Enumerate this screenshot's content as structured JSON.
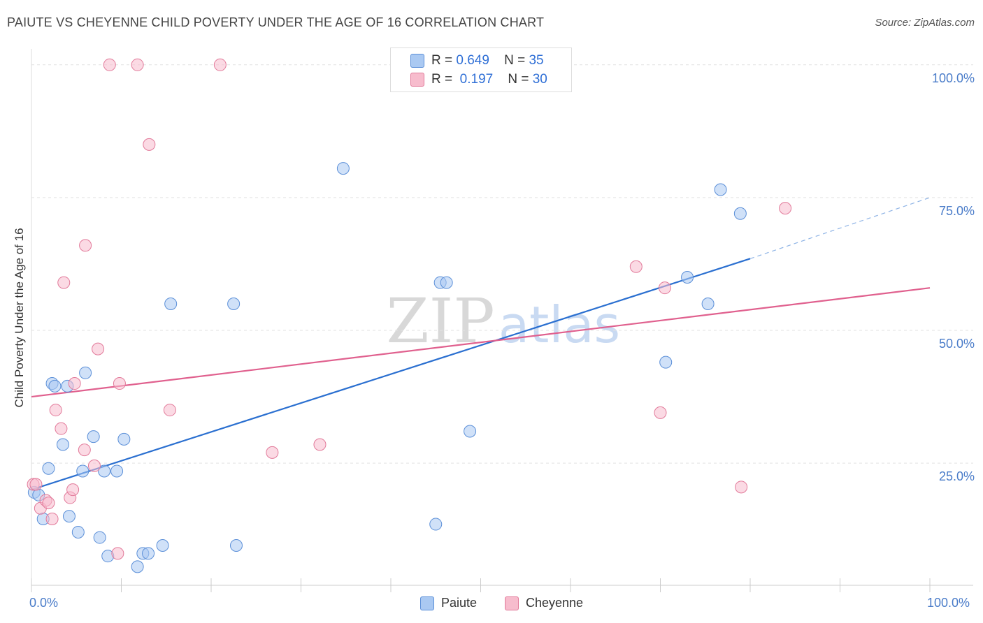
{
  "header": {
    "title": "PAIUTE VS CHEYENNE CHILD POVERTY UNDER THE AGE OF 16 CORRELATION CHART",
    "source": "Source: ZipAtlas.com"
  },
  "watermark": {
    "zip": "ZIP",
    "atlas": "atlas"
  },
  "legend": {
    "paiute": {
      "r_label": "R =",
      "r_value": "0.649",
      "n_label": "N =",
      "n_value": "35",
      "color": "#a8c8f0"
    },
    "cheyenne": {
      "r_label": "R =",
      "r_value": "0.197",
      "n_label": "N =",
      "n_value": "30",
      "color": "#f5b8c8"
    }
  },
  "bottom_legend": {
    "paiute": "Paiute",
    "cheyenne": "Cheyenne"
  },
  "colors": {
    "paiute_fill": "#aac9f2",
    "paiute_stroke": "#5b8fd8",
    "paiute_line": "#2a6fd0",
    "cheyenne_fill": "#f7bccd",
    "cheyenne_stroke": "#e27a9a",
    "cheyenne_line": "#e0608e",
    "axis_label": "#4a7cc9"
  },
  "chart_data": {
    "type": "scatter",
    "title": "PAIUTE VS CHEYENNE CHILD POVERTY UNDER THE AGE OF 16 CORRELATION CHART",
    "xlabel": "",
    "ylabel": "Child Poverty Under the Age of 16",
    "xlim": [
      0,
      100
    ],
    "ylim": [
      2,
      103
    ],
    "x_tick_labels": [
      "0.0%",
      "100.0%"
    ],
    "y_ticks": [
      25,
      50,
      75,
      100
    ],
    "y_tick_labels": [
      "25.0%",
      "50.0%",
      "75.0%",
      "100.0%"
    ],
    "grid": true,
    "series": [
      {
        "name": "Paiute",
        "r": 0.649,
        "n": 35,
        "points": [
          [
            0.3,
            19.5
          ],
          [
            0.8,
            19
          ],
          [
            1.3,
            14.5
          ],
          [
            1.9,
            24
          ],
          [
            2.3,
            40
          ],
          [
            2.6,
            39.5
          ],
          [
            3.5,
            28.5
          ],
          [
            4.0,
            39.5
          ],
          [
            4.2,
            15
          ],
          [
            5.2,
            12
          ],
          [
            5.7,
            23.5
          ],
          [
            6.0,
            42
          ],
          [
            6.9,
            30
          ],
          [
            7.6,
            11
          ],
          [
            8.1,
            23.5
          ],
          [
            8.5,
            7.5
          ],
          [
            9.5,
            23.5
          ],
          [
            10.3,
            29.5
          ],
          [
            11.8,
            5.5
          ],
          [
            12.4,
            8
          ],
          [
            13.0,
            8
          ],
          [
            14.6,
            9.5
          ],
          [
            15.5,
            55
          ],
          [
            22.5,
            55
          ],
          [
            22.8,
            9.5
          ],
          [
            34.7,
            80.5
          ],
          [
            45.0,
            13.5
          ],
          [
            45.5,
            59
          ],
          [
            46.2,
            59
          ],
          [
            48.8,
            31
          ],
          [
            70.6,
            44
          ],
          [
            73.0,
            60
          ],
          [
            75.3,
            55
          ],
          [
            76.7,
            76.5
          ],
          [
            78.9,
            72
          ]
        ],
        "trend": {
          "x_start": 0,
          "y_start": 20,
          "x_solid_end": 80,
          "y_solid_end": 63.5,
          "x_end": 100,
          "y_end": 75
        }
      },
      {
        "name": "Cheyenne",
        "r": 0.197,
        "n": 30,
        "points": [
          [
            0.2,
            21
          ],
          [
            0.5,
            21
          ],
          [
            1.0,
            16.5
          ],
          [
            1.6,
            18
          ],
          [
            1.9,
            17.5
          ],
          [
            2.3,
            14.5
          ],
          [
            2.7,
            35
          ],
          [
            3.3,
            31.5
          ],
          [
            3.6,
            59
          ],
          [
            4.3,
            18.5
          ],
          [
            4.6,
            20
          ],
          [
            4.8,
            40
          ],
          [
            5.9,
            27.5
          ],
          [
            6.0,
            66
          ],
          [
            7.0,
            24.5
          ],
          [
            7.4,
            46.5
          ],
          [
            9.6,
            8
          ],
          [
            9.8,
            40
          ],
          [
            8.7,
            100
          ],
          [
            11.8,
            100
          ],
          [
            13.1,
            85
          ],
          [
            15.4,
            35
          ],
          [
            21.0,
            100
          ],
          [
            26.8,
            27
          ],
          [
            32.1,
            28.5
          ],
          [
            67.3,
            62
          ],
          [
            70.0,
            34.5
          ],
          [
            70.5,
            58
          ],
          [
            79.0,
            20.5
          ],
          [
            83.9,
            73
          ]
        ],
        "trend": {
          "x_start": 0,
          "y_start": 37.5,
          "x_end": 100,
          "y_end": 58
        }
      }
    ]
  }
}
